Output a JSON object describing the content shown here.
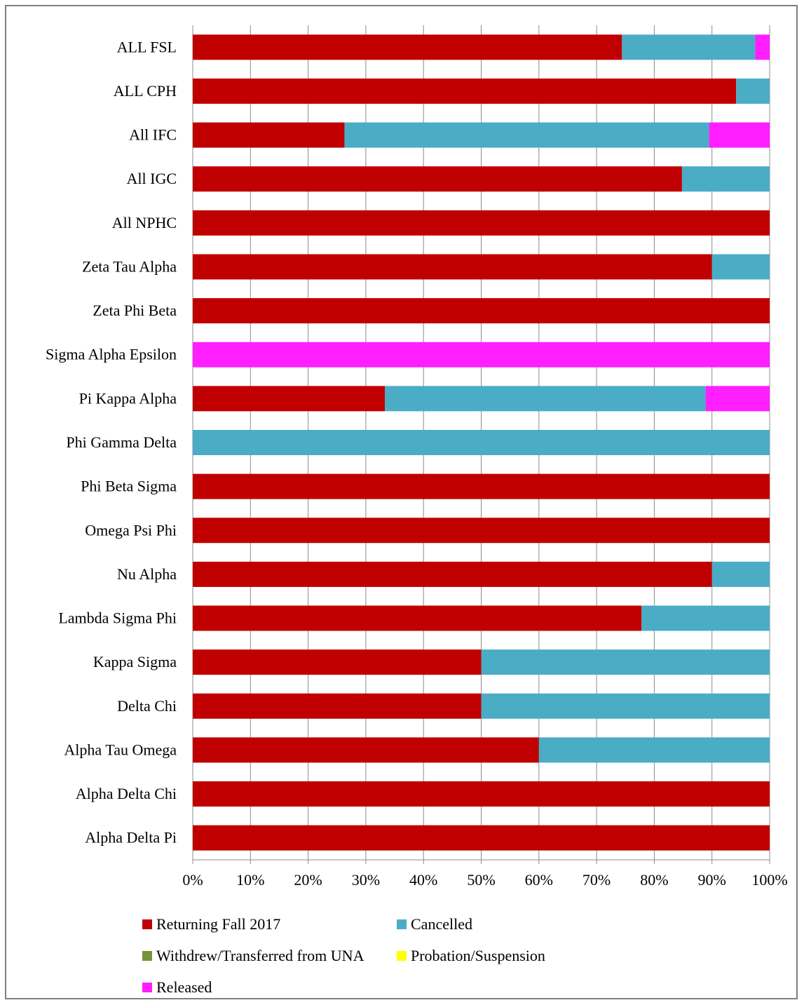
{
  "chart_data": {
    "type": "bar",
    "orientation": "horizontal",
    "stacking": "percent",
    "categories": [
      "ALL FSL",
      "ALL CPH",
      "All IFC",
      "All IGC",
      "All NPHC",
      "Zeta Tau Alpha",
      "Zeta Phi Beta",
      "Sigma Alpha Epsilon",
      "Pi Kappa Alpha",
      "Phi Gamma Delta",
      "Phi Beta Sigma",
      "Omega Psi Phi",
      "Nu Alpha",
      "Lambda Sigma Phi",
      "Kappa Sigma",
      "Delta Chi",
      "Alpha Tau Omega",
      "Alpha Delta Chi",
      "Alpha Delta Pi"
    ],
    "series": [
      {
        "name": "Returning Fall 2017",
        "color": "#c00000",
        "values": [
          74.4,
          94.2,
          26.3,
          84.8,
          100,
          90,
          100,
          0,
          33.3,
          0,
          100,
          100,
          90,
          77.8,
          50,
          50,
          60,
          100,
          100
        ]
      },
      {
        "name": "Cancelled",
        "color": "#4bacc6",
        "values": [
          23.1,
          5.8,
          63.2,
          15.2,
          0,
          10,
          0,
          0,
          55.6,
          100,
          0,
          0,
          10,
          22.2,
          50,
          50,
          40,
          0,
          0
        ]
      },
      {
        "name": "Withdrew/Transferred from UNA",
        "color": "#77933c",
        "values": [
          0,
          0,
          0,
          0,
          0,
          0,
          0,
          0,
          0,
          0,
          0,
          0,
          0,
          0,
          0,
          0,
          0,
          0,
          0
        ]
      },
      {
        "name": "Probation/Suspension",
        "color": "#ffff00",
        "values": [
          0,
          0,
          0,
          0,
          0,
          0,
          0,
          0,
          0,
          0,
          0,
          0,
          0,
          0,
          0,
          0,
          0,
          0,
          0
        ]
      },
      {
        "name": "Released",
        "color": "#ff1eff",
        "values": [
          2.5,
          0,
          10.5,
          0,
          0,
          0,
          0,
          100,
          11.1,
          0,
          0,
          0,
          0,
          0,
          0,
          0,
          0,
          0,
          0
        ]
      }
    ],
    "xlim": [
      0,
      100
    ],
    "xticks": [
      "0%",
      "10%",
      "20%",
      "30%",
      "40%",
      "50%",
      "60%",
      "70%",
      "80%",
      "90%",
      "100%"
    ],
    "grid": "vertical gridlines",
    "legend_position": "bottom",
    "title": "",
    "xlabel": "",
    "ylabel": ""
  }
}
